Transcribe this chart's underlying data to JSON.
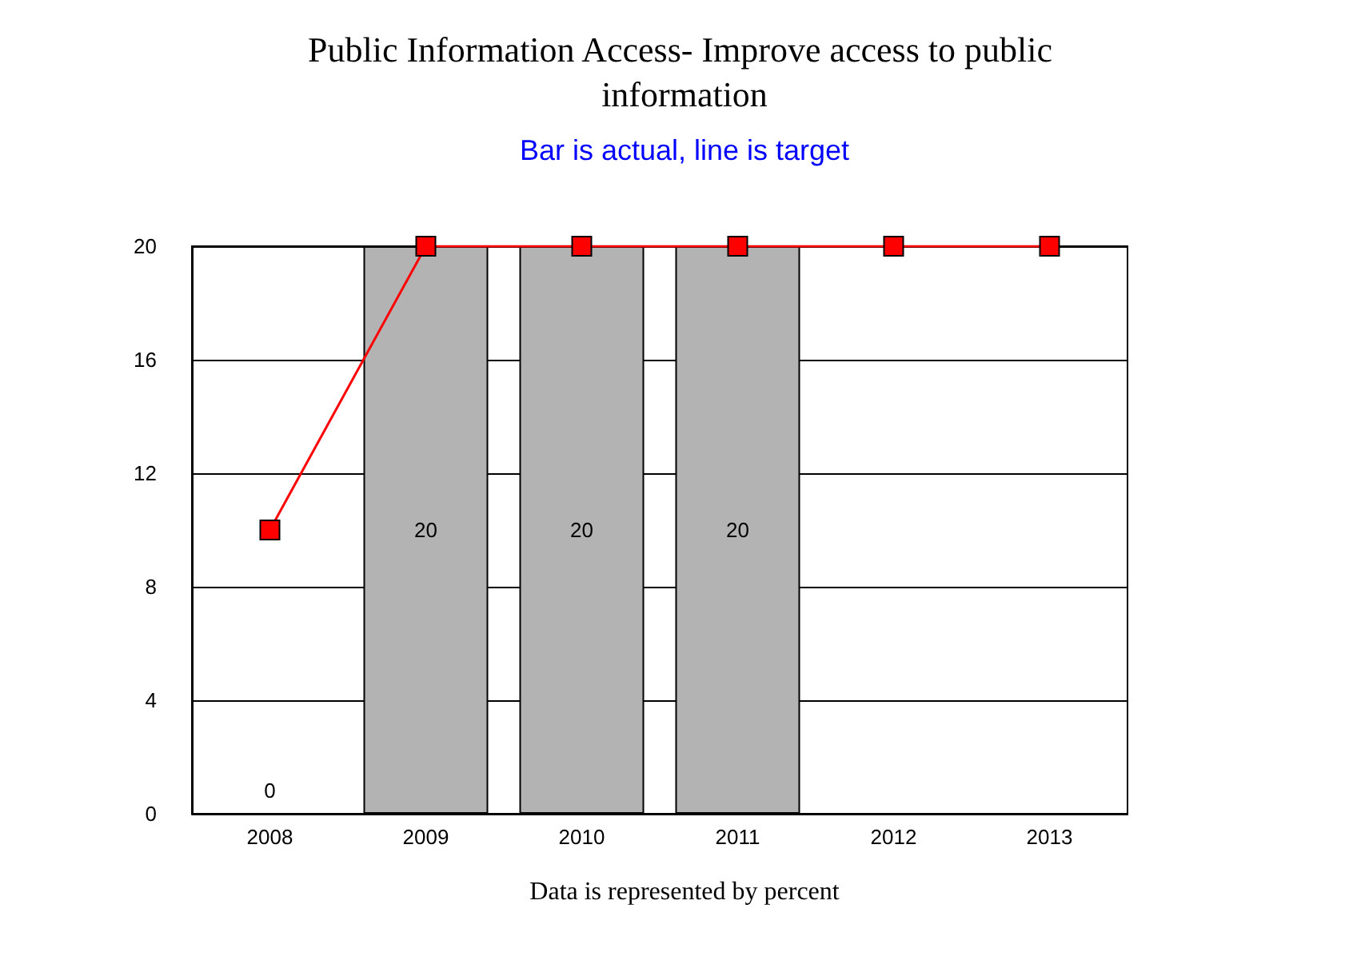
{
  "chart_data": {
    "type": "bar",
    "title": "Public Information Access- Improve access to public information",
    "subtitle": "Bar is actual, line is target",
    "annotations": [
      "Data is represented by percent"
    ],
    "categories": [
      "2008",
      "2009",
      "2010",
      "2011",
      "2012",
      "2013"
    ],
    "series": [
      {
        "color": "#b3b3b3",
        "values": [
          0,
          20,
          20,
          20,
          null,
          null
        ],
        "value_labels": [
          "0",
          "20",
          "20",
          "20",
          null,
          null
        ]
      },
      {
        "type": "line",
        "color": "#ff0000",
        "values": [
          10,
          20,
          20,
          20,
          20,
          20
        ],
        "marker": "square"
      }
    ],
    "ylim": [
      0,
      20
    ],
    "yticks": [
      0,
      4,
      8,
      12,
      16,
      20
    ],
    "grid": "y"
  }
}
